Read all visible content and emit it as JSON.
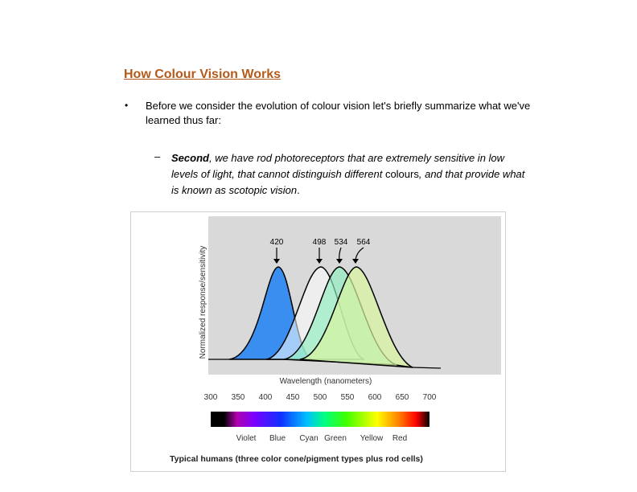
{
  "slide": {
    "title": "How Colour Vision Works",
    "bullet_marker": "•",
    "bullet_text": "Before we consider the evolution of colour vision let's briefly summarize what we've learned thus far:",
    "sub_marker": "–",
    "sub_lead": "Second",
    "sub_part1": ", we have rod photoreceptors that are extremely sensitive in low levels of light, that cannot distinguish different ",
    "sub_word": "colours",
    "sub_part2": ", and that provide what is known as ",
    "sub_word2": "scotopic vision",
    "sub_end": "."
  },
  "figure": {
    "ylabel": "Normalized response/sensitivity",
    "xlabel": "Wavelength (nanometers)",
    "caption": "Typical humans (three color cone/pigment types plus rod cells)",
    "peaks": [
      "420",
      "498",
      "534",
      "564"
    ],
    "ticks": [
      "300",
      "350",
      "400",
      "450",
      "500",
      "550",
      "600",
      "650",
      "700"
    ],
    "spectrum_labels": [
      "Violet",
      "Blue",
      "Cyan",
      "Green",
      "Yellow",
      "Red"
    ]
  },
  "chart_data": {
    "type": "line",
    "xlabel": "Wavelength (nanometers)",
    "ylabel": "Normalized response/sensitivity",
    "xlim": [
      300,
      700
    ],
    "series": [
      {
        "peak": 420,
        "color": "#3a8ef0"
      },
      {
        "peak": 498,
        "color": "#ffffff"
      },
      {
        "peak": 534,
        "color": "#8ef0c0"
      },
      {
        "peak": 564,
        "color": "#d8f5a0"
      }
    ]
  }
}
